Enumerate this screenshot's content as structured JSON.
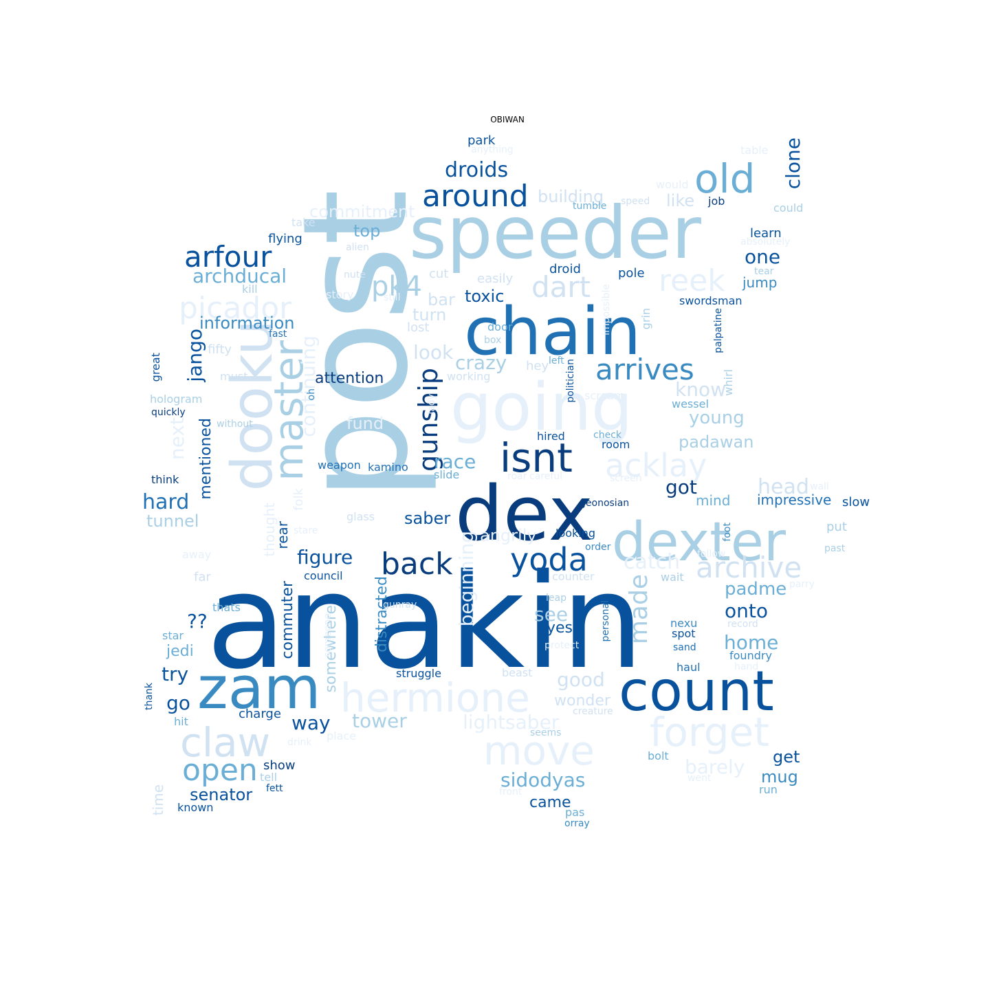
{
  "chart_data": {
    "type": "wordcloud",
    "title": "OBIWAN",
    "colormap": "Blues",
    "palette": {
      "1": "#e6f0fa",
      "2": "#d0e1f2",
      "3": "#a9cfe5",
      "4": "#6aaed6",
      "5": "#3a8ac2",
      "6": "#2070b4",
      "7": "#08519c",
      "8": "#083c7d"
    },
    "words": [
      {
        "text": "anakin",
        "shade": 7
      },
      {
        "text": "post",
        "shade": 3
      },
      {
        "text": "speeder",
        "shade": 3
      },
      {
        "text": "chain",
        "shade": 6
      },
      {
        "text": "dex",
        "shade": 8
      },
      {
        "text": "going",
        "shade": 1
      },
      {
        "text": "dooku",
        "shade": 2
      },
      {
        "text": "count",
        "shade": 7
      },
      {
        "text": "dexter",
        "shade": 3
      },
      {
        "text": "zam",
        "shade": 5
      },
      {
        "text": "old",
        "shade": 4
      },
      {
        "text": "isnt",
        "shade": 8
      },
      {
        "text": "master",
        "shade": 3
      },
      {
        "text": "hermione",
        "shade": 1
      },
      {
        "text": "forget",
        "shade": 1
      },
      {
        "text": "claw",
        "shade": 2
      },
      {
        "text": "around",
        "shade": 7
      },
      {
        "text": "arfour",
        "shade": 7
      },
      {
        "text": "yoda",
        "shade": 7
      },
      {
        "text": "back",
        "shade": 8
      },
      {
        "text": "move",
        "shade": 1
      },
      {
        "text": "arrives",
        "shade": 5
      },
      {
        "text": "reek",
        "shade": 1
      },
      {
        "text": "acklay",
        "shade": 1
      },
      {
        "text": "picador",
        "shade": 1
      },
      {
        "text": "archive",
        "shade": 2
      },
      {
        "text": "dart",
        "shade": 2
      },
      {
        "text": "gunship",
        "shade": 8
      },
      {
        "text": "open",
        "shade": 4
      },
      {
        "text": "pk4",
        "shade": 3
      },
      {
        "text": "droids",
        "shade": 7
      },
      {
        "text": "made",
        "shade": 3
      },
      {
        "text": "clone",
        "shade": 7
      },
      {
        "text": "continuing",
        "shade": 1
      },
      {
        "text": "archducal",
        "shade": 4
      },
      {
        "text": "one",
        "shade": 7
      },
      {
        "text": "figure",
        "shade": 7
      },
      {
        "text": "hard",
        "shade": 6
      },
      {
        "text": "head",
        "shade": 2
      },
      {
        "text": "jango",
        "shade": 7
      },
      {
        "text": "sidodyas",
        "shade": 4
      },
      {
        "text": "race",
        "shade": 4
      },
      {
        "text": "next",
        "shade": 1
      },
      {
        "text": "beginning",
        "shade": 1
      },
      {
        "text": "building",
        "shade": 2
      },
      {
        "text": "catch",
        "shade": 1
      },
      {
        "text": "look",
        "shade": 2
      },
      {
        "text": "crazy",
        "shade": 3
      },
      {
        "text": "commitment",
        "shade": 1
      },
      {
        "text": "information",
        "shade": 5
      },
      {
        "text": "padme",
        "shade": 4
      },
      {
        "text": "onto",
        "shade": 7
      },
      {
        "text": "know",
        "shade": 2
      },
      {
        "text": "young",
        "shade": 3
      },
      {
        "text": "padawan",
        "shade": 3
      },
      {
        "text": "home",
        "shade": 4
      },
      {
        "text": "way",
        "shade": 7
      },
      {
        "text": "tower",
        "shade": 3
      },
      {
        "text": "lightsaber",
        "shade": 1
      },
      {
        "text": "barely",
        "shade": 1
      },
      {
        "text": "good",
        "shade": 2
      },
      {
        "text": "got",
        "shade": 8
      },
      {
        "text": "distracted",
        "shade": 5
      },
      {
        "text": "somewhere",
        "shade": 3
      },
      {
        "text": "commuter",
        "shade": 7
      },
      {
        "text": "mentioned",
        "shade": 7
      },
      {
        "text": "attention",
        "shade": 8
      },
      {
        "text": "see",
        "shade": 3
      },
      {
        "text": "try",
        "shade": 7
      },
      {
        "text": "go",
        "shade": 7
      },
      {
        "text": "angrily",
        "shade": 1
      },
      {
        "text": "top",
        "shade": 4
      },
      {
        "text": "toxic",
        "shade": 7
      },
      {
        "text": "turn",
        "shade": 2
      },
      {
        "text": "bar",
        "shade": 2
      },
      {
        "text": "senator",
        "shade": 7
      },
      {
        "text": "saber",
        "shade": 7
      },
      {
        "text": "tunnel",
        "shade": 3
      },
      {
        "text": "get",
        "shade": 7
      },
      {
        "text": "mug",
        "shade": 5
      },
      {
        "text": "came",
        "shade": 7
      },
      {
        "text": "yes",
        "shade": 7
      },
      {
        "text": "jedi",
        "shade": 4
      },
      {
        "text": "wonder",
        "shade": 2
      },
      {
        "text": "like",
        "shade": 2
      },
      {
        "text": "impressive",
        "shade": 6
      },
      {
        "text": "mind",
        "shade": 4
      },
      {
        "text": "jump",
        "shade": 5
      },
      {
        "text": "??",
        "shade": 7
      },
      {
        "text": "rear",
        "shade": 7
      },
      {
        "text": "thought",
        "shade": 1
      },
      {
        "text": "folk",
        "shade": 1
      },
      {
        "text": "fund",
        "shade": 1
      },
      {
        "text": "learn",
        "shade": 7
      },
      {
        "text": "slow",
        "shade": 7
      },
      {
        "text": "flying",
        "shade": 7
      },
      {
        "text": "droid",
        "shade": 7
      },
      {
        "text": "pole",
        "shade": 7
      },
      {
        "text": "swordsman",
        "shade": 7
      },
      {
        "text": "easily",
        "shade": 2
      },
      {
        "text": "cut",
        "shade": 2
      },
      {
        "text": "lost",
        "shade": 2
      },
      {
        "text": "door",
        "shade": 4
      },
      {
        "text": "weapon",
        "shade": 6
      },
      {
        "text": "kamino",
        "shade": 6
      },
      {
        "text": "slide",
        "shade": 4
      },
      {
        "text": "hired",
        "shade": 7
      },
      {
        "text": "room",
        "shade": 7
      },
      {
        "text": "check",
        "shade": 4
      },
      {
        "text": "looking",
        "shade": 7
      },
      {
        "text": "geonosian",
        "shade": 8
      },
      {
        "text": "council",
        "shade": 7
      },
      {
        "text": "charge",
        "shade": 7
      },
      {
        "text": "show",
        "shade": 8
      },
      {
        "text": "tell",
        "shade": 3
      },
      {
        "text": "fett",
        "shade": 7
      },
      {
        "text": "known",
        "shade": 7
      },
      {
        "text": "time",
        "shade": 2
      },
      {
        "text": "hit",
        "shade": 4
      },
      {
        "text": "thank",
        "shade": 7
      },
      {
        "text": "struggle",
        "shade": 7
      },
      {
        "text": "beast",
        "shade": 2
      },
      {
        "text": "hologram",
        "shade": 3
      },
      {
        "text": "quickly",
        "shade": 8
      },
      {
        "text": "think",
        "shade": 8
      },
      {
        "text": "great",
        "shade": 7
      },
      {
        "text": "job",
        "shade": 8
      },
      {
        "text": "could",
        "shade": 3
      },
      {
        "text": "park",
        "shade": 7
      },
      {
        "text": "anything",
        "shade": 1
      },
      {
        "text": "table",
        "shade": 1
      },
      {
        "text": "would",
        "shade": 1
      },
      {
        "text": "tumble",
        "shade": 4
      },
      {
        "text": "speed",
        "shade": 2
      },
      {
        "text": "absolutely",
        "shade": 1
      },
      {
        "text": "tear",
        "shade": 3
      },
      {
        "text": "take",
        "shade": 2
      },
      {
        "text": "alien",
        "shade": 2
      },
      {
        "text": "nute",
        "shade": 2
      },
      {
        "text": "kill",
        "shade": 3
      },
      {
        "text": "story",
        "shade": 1
      },
      {
        "text": "still",
        "shade": 1
      },
      {
        "text": "fast",
        "shade": 6
      },
      {
        "text": "fifty",
        "shade": 2
      },
      {
        "text": "must",
        "shade": 2
      },
      {
        "text": "without",
        "shade": 3
      },
      {
        "text": "oh",
        "shade": 5
      },
      {
        "text": "lady",
        "shade": 1
      },
      {
        "text": "working",
        "shade": 2
      },
      {
        "text": "hey",
        "shade": 2
      },
      {
        "text": "left",
        "shade": 4
      },
      {
        "text": "box",
        "shade": 3
      },
      {
        "text": "impossible",
        "shade": 1
      },
      {
        "text": "grin",
        "shade": 3
      },
      {
        "text": "politician",
        "shade": 7
      },
      {
        "text": "palpatine",
        "shade": 7
      },
      {
        "text": "whirl",
        "shade": 3
      },
      {
        "text": "wessel",
        "shade": 4
      },
      {
        "text": "scream",
        "shade": 1
      },
      {
        "text": "roar",
        "shade": 1
      },
      {
        "text": "careful",
        "shade": 1
      },
      {
        "text": "screen",
        "shade": 1
      },
      {
        "text": "wall",
        "shade": 1
      },
      {
        "text": "put",
        "shade": 3
      },
      {
        "text": "past",
        "shade": 3
      },
      {
        "text": "foot",
        "shade": 5
      },
      {
        "text": "order",
        "shade": 5
      },
      {
        "text": "follow",
        "shade": 1
      },
      {
        "text": "wait",
        "shade": 3
      },
      {
        "text": "counter",
        "shade": 2
      },
      {
        "text": "leap",
        "shade": 3
      },
      {
        "text": "personal",
        "shade": 6
      },
      {
        "text": "nexu",
        "shade": 5
      },
      {
        "text": "spot",
        "shade": 7
      },
      {
        "text": "sand",
        "shade": 6
      },
      {
        "text": "record",
        "shade": 2
      },
      {
        "text": "foundry",
        "shade": 5
      },
      {
        "text": "hand",
        "shade": 1
      },
      {
        "text": "parry",
        "shade": 1
      },
      {
        "text": "haul",
        "shade": 6
      },
      {
        "text": "protect",
        "shade": 1
      },
      {
        "text": "creature",
        "shade": 2
      },
      {
        "text": "seems",
        "shade": 3
      },
      {
        "text": "bolt",
        "shade": 4
      },
      {
        "text": "went",
        "shade": 1
      },
      {
        "text": "run",
        "shade": 4
      },
      {
        "text": "front",
        "shade": 1
      },
      {
        "text": "pas",
        "shade": 4
      },
      {
        "text": "orray",
        "shade": 5
      },
      {
        "text": "glass",
        "shade": 2
      },
      {
        "text": "stare",
        "shade": 1
      },
      {
        "text": "away",
        "shade": 1
      },
      {
        "text": "far",
        "shade": 2
      },
      {
        "text": "thats",
        "shade": 4
      },
      {
        "text": "gunray",
        "shade": 2
      },
      {
        "text": "someone",
        "shade": 1
      },
      {
        "text": "star",
        "shade": 4
      },
      {
        "text": "drink",
        "shade": 1
      },
      {
        "text": "place",
        "shade": 1
      }
    ]
  }
}
